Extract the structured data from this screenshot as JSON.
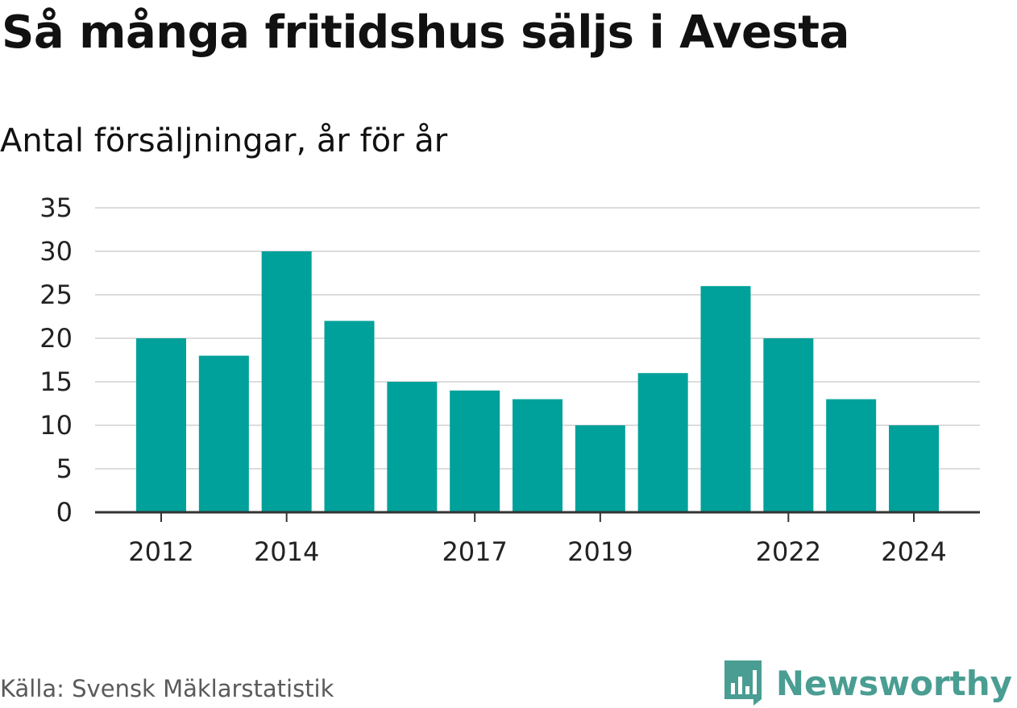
{
  "title": "Så många fritidshus säljs i Avesta",
  "subtitle": "Antal försäljningar, år för år",
  "source": "Källa: Svensk Mäklarstatistik",
  "brand": {
    "name": "Newsworthy",
    "icon": "newsworthy-logo-icon",
    "color": "#4a9d92"
  },
  "colors": {
    "bar": "#00a19a",
    "grid": "#dcdcdc",
    "axis": "#333333"
  },
  "chart_data": {
    "type": "bar",
    "title": "Så många fritidshus säljs i Avesta",
    "subtitle": "Antal försäljningar, år för år",
    "xlabel": "",
    "ylabel": "",
    "categories": [
      "2012",
      "2013",
      "2014",
      "2015",
      "2016",
      "2017",
      "2018",
      "2019",
      "2020",
      "2021",
      "2022",
      "2023",
      "2024"
    ],
    "values": [
      20,
      18,
      30,
      22,
      15,
      14,
      13,
      10,
      16,
      26,
      20,
      13,
      10
    ],
    "x_tick_labels": [
      "2012",
      "2014",
      "2017",
      "2019",
      "2022",
      "2024"
    ],
    "y_ticks": [
      0,
      5,
      10,
      15,
      20,
      25,
      30,
      35
    ],
    "ylim": [
      0,
      35
    ],
    "grid": true,
    "legend": "none"
  }
}
